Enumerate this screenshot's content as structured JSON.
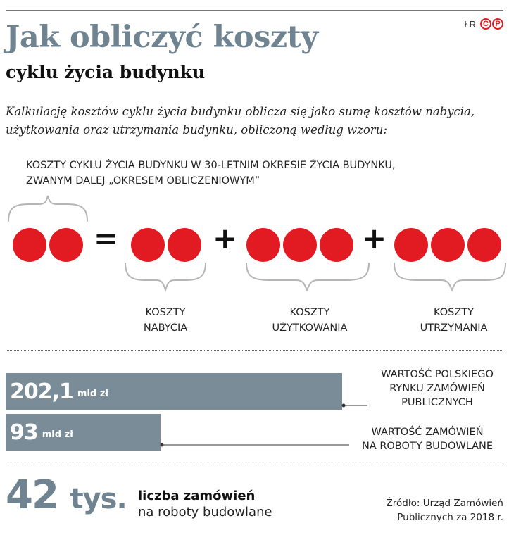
{
  "header": {
    "title": "Jak obliczyć koszty",
    "subtitle": "cyklu życia budynku",
    "author_badge": "ŁR",
    "logo_letters": [
      "C",
      "P"
    ]
  },
  "intro": "Kalkulację kosztów cyklu życia budynku oblicza się jako sumę kosztów nabycia, użytkowania oraz utrzymania budynku, obliczoną według wzoru:",
  "formula": {
    "label_line1": "KOSZTY CYKLU ŻYCIA BUDYNKU W 30-LETNIM OKRESIE ŻYCIA BUDYNKU,",
    "label_line2": "ZWANYM DALEJ „OKRESEM OBLICZENIOWYM”",
    "equals": "=",
    "plus": "+",
    "groups": [
      {
        "line1": "KOSZTY",
        "line2": "NABYCIA"
      },
      {
        "line1": "KOSZTY",
        "line2": "UŻYTKOWANIA"
      },
      {
        "line1": "KOSZTY",
        "line2": "UTRZYMANIA"
      }
    ],
    "dot_color": "#e21b22"
  },
  "chart_data": {
    "type": "bar",
    "orientation": "horizontal",
    "categories": [
      "WARTOŚĆ POLSKIEGO RYNKU ZAMÓWIEŃ PUBLICZNYCH",
      "WARTOŚĆ ZAMÓWIEŃ NA ROBOTY BUDOWLANE"
    ],
    "values": [
      202.1,
      93
    ],
    "value_labels": [
      "202,1",
      "93"
    ],
    "unit": "mld zł",
    "bar_color": "#7a8c97",
    "labels": [
      [
        "WARTOŚĆ POLSKIEGO",
        "RYNKU ZAMÓWIEŃ",
        "PUBLICZNYCH"
      ],
      [
        "WARTOŚĆ ZAMÓWIEŃ",
        "NA ROBOTY BUDOWLANE"
      ]
    ]
  },
  "count": {
    "number": "42",
    "unit": "tys.",
    "label_bold": "liczba zamówień",
    "label": "na roboty budowlane"
  },
  "source": {
    "line1": "Źródło: Urząd Zamówień",
    "line2": "Publicznych za 2018 r."
  }
}
